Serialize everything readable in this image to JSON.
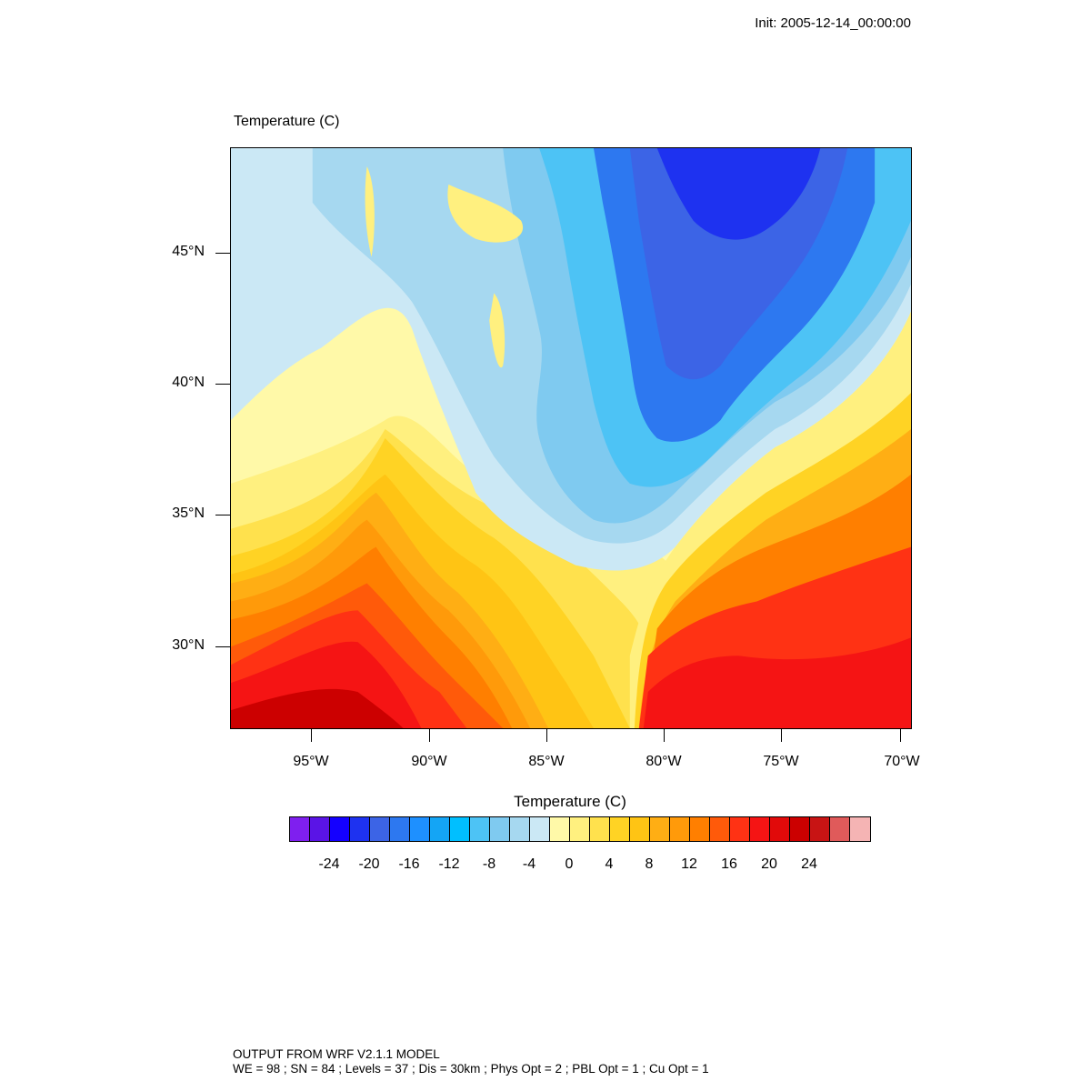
{
  "init_text": "Init: 2005-12-14_00:00:00",
  "plot_title": "Temperature   (C)",
  "colorbar": {
    "title": "Temperature  (C)",
    "colors": [
      "#7f1fef",
      "#5a14e6",
      "#1400ff",
      "#1e32f0",
      "#3c64e6",
      "#2d78f0",
      "#1e90ff",
      "#14a5f5",
      "#00bfff",
      "#4dc3f5",
      "#7fcaf0",
      "#a6d8f0",
      "#cbe8f5",
      "#fff9a8",
      "#fff07f",
      "#ffe14d",
      "#ffd324",
      "#ffc414",
      "#ffae14",
      "#ff9a0a",
      "#ff7f00",
      "#ff5a0a",
      "#ff3214",
      "#f51414",
      "#e10a0a",
      "#cc0000",
      "#c81414",
      "#e05a5a",
      "#f5b4b4"
    ],
    "labels": [
      "-24",
      "-20",
      "-16",
      "-12",
      "-8",
      "-4",
      "0",
      "4",
      "8",
      "12",
      "16",
      "20",
      "24"
    ]
  },
  "axes": {
    "lat_labels": [
      "45°N",
      "40°N",
      "35°N",
      "30°N"
    ],
    "lon_labels": [
      "95°W",
      "90°W",
      "85°W",
      "80°W",
      "75°W",
      "70°W"
    ]
  },
  "footer": {
    "line1": "OUTPUT FROM WRF V2.1.1 MODEL",
    "line2": "WE = 98 ; SN = 84 ; Levels = 37 ; Dis = 30km ; Phys Opt = 2 ; PBL Opt = 1 ; Cu Opt = 1"
  }
}
